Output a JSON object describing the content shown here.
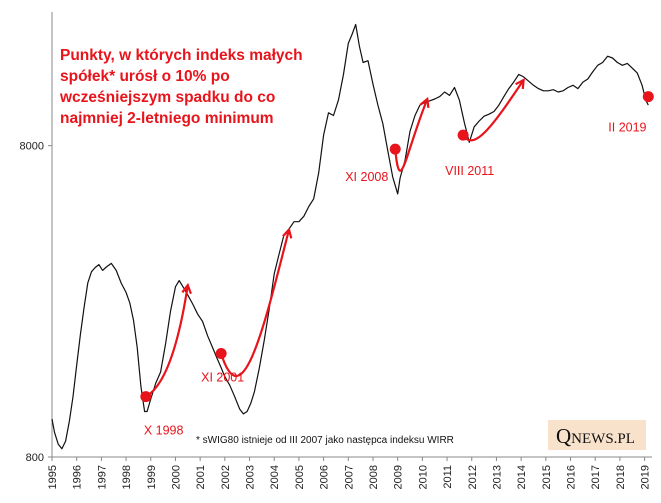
{
  "chart_data": {
    "type": "line",
    "title_lines": [
      "Punkty, w których indeks małych",
      "spółek* urósł o 10% po",
      "wcześniejszym spadku do co",
      "najmniej 2-letniego minimum"
    ],
    "xlabel": "",
    "ylabel": "",
    "log_scale": true,
    "ylim": [
      800,
      21500
    ],
    "xlim": [
      1995.0,
      2019.3
    ],
    "x_ticks": [
      "1995",
      "1996",
      "1997",
      "1998",
      "1999",
      "2000",
      "2001",
      "2002",
      "2003",
      "2004",
      "2005",
      "2006",
      "2007",
      "2008",
      "2009",
      "2010",
      "2011",
      "2012",
      "2013",
      "2014",
      "2015",
      "2016",
      "2017",
      "2018",
      "2019"
    ],
    "y_ticks": [
      {
        "value": 800,
        "label": "800"
      },
      {
        "value": 8000,
        "label": "8000"
      }
    ],
    "grid": false,
    "legend": "none",
    "series": [
      {
        "x": [
          1995.0,
          1995.1,
          1995.25,
          1995.4,
          1995.55,
          1995.7,
          1995.85,
          1996.0,
          1996.15,
          1996.3,
          1996.45,
          1996.6,
          1996.75,
          1996.9,
          1997.05,
          1997.2,
          1997.4,
          1997.6,
          1997.8,
          1998.0,
          1998.15,
          1998.3,
          1998.45,
          1998.6,
          1998.75,
          1998.85,
          1999.0,
          1999.2,
          1999.4,
          1999.6,
          1999.8,
          2000.0,
          2000.15,
          2000.35,
          2000.5,
          2000.7,
          2000.9,
          2001.1,
          2001.3,
          2001.5,
          2001.7,
          2001.85,
          2002.0,
          2002.2,
          2002.4,
          2002.6,
          2002.75,
          2002.9,
          2003.05,
          2003.2,
          2003.4,
          2003.6,
          2003.8,
          2004.0,
          2004.2,
          2004.4,
          2004.6,
          2004.8,
          2005.0,
          2005.2,
          2005.4,
          2005.6,
          2005.8,
          2006.0,
          2006.2,
          2006.4,
          2006.6,
          2006.8,
          2007.0,
          2007.15,
          2007.3,
          2007.45,
          2007.6,
          2007.8,
          2008.0,
          2008.2,
          2008.4,
          2008.6,
          2008.8,
          2009.0,
          2009.1,
          2009.3,
          2009.5,
          2009.7,
          2009.9,
          2010.1,
          2010.3,
          2010.5,
          2010.7,
          2010.9,
          2011.1,
          2011.3,
          2011.5,
          2011.7,
          2011.9,
          2012.1,
          2012.3,
          2012.5,
          2012.7,
          2012.9,
          2013.1,
          2013.3,
          2013.5,
          2013.7,
          2013.9,
          2014.1,
          2014.3,
          2014.5,
          2014.7,
          2014.9,
          2015.1,
          2015.3,
          2015.5,
          2015.7,
          2015.9,
          2016.1,
          2016.3,
          2016.5,
          2016.7,
          2016.9,
          2017.1,
          2017.3,
          2017.5,
          2017.7,
          2017.9,
          2018.1,
          2018.3,
          2018.5,
          2018.7,
          2018.9,
          2019.05,
          2019.15
        ],
        "y": [
          1060,
          960,
          880,
          850,
          900,
          1040,
          1250,
          1580,
          1980,
          2420,
          2900,
          3150,
          3250,
          3320,
          3180,
          3260,
          3350,
          3180,
          2900,
          2700,
          2500,
          2200,
          1800,
          1350,
          1120,
          1120,
          1230,
          1380,
          1500,
          1850,
          2350,
          2820,
          2950,
          2780,
          2650,
          2480,
          2300,
          2180,
          1960,
          1800,
          1650,
          1550,
          1450,
          1360,
          1250,
          1140,
          1100,
          1120,
          1190,
          1300,
          1550,
          1900,
          2400,
          3100,
          3600,
          4150,
          4320,
          4560,
          4560,
          4750,
          5100,
          5400,
          6550,
          8650,
          10200,
          10000,
          11200,
          13500,
          17050,
          18200,
          19600,
          16700,
          14800,
          15000,
          12600,
          10800,
          9400,
          7700,
          6350,
          5600,
          6300,
          7200,
          8900,
          10000,
          10800,
          11000,
          11150,
          11300,
          11500,
          11900,
          11600,
          12300,
          11200,
          9500,
          8200,
          9200,
          9600,
          9950,
          10100,
          10300,
          10800,
          11500,
          12200,
          12800,
          13550,
          13300,
          12900,
          12500,
          12200,
          12000,
          12000,
          12100,
          11900,
          12000,
          12300,
          12500,
          12200,
          12800,
          13100,
          13800,
          14500,
          14800,
          15500,
          15300,
          14800,
          14500,
          14700,
          14200,
          13700,
          12500,
          11200,
          10800
        ]
      }
    ],
    "annotations": [
      {
        "label": "X 1998",
        "x": 1998.8,
        "y": 1250
      },
      {
        "label": "XI 2001",
        "x": 2001.85,
        "y": 1720
      },
      {
        "label": "XI 2008",
        "x": 2008.9,
        "y": 7800
      },
      {
        "label": "VIII 2011",
        "x": 2011.65,
        "y": 8650
      },
      {
        "label": "II 2019",
        "x": 2019.15,
        "y": 11500
      }
    ],
    "footnote": "* sWIG80 istnieje od III 2007 jako następca indeksu WIRR",
    "logo": {
      "main": "Q",
      "rest": "NEWS.PL"
    },
    "colors": {
      "line": "#111111",
      "accent": "#e8141b",
      "logo_bg": "#f9e2cc"
    }
  }
}
